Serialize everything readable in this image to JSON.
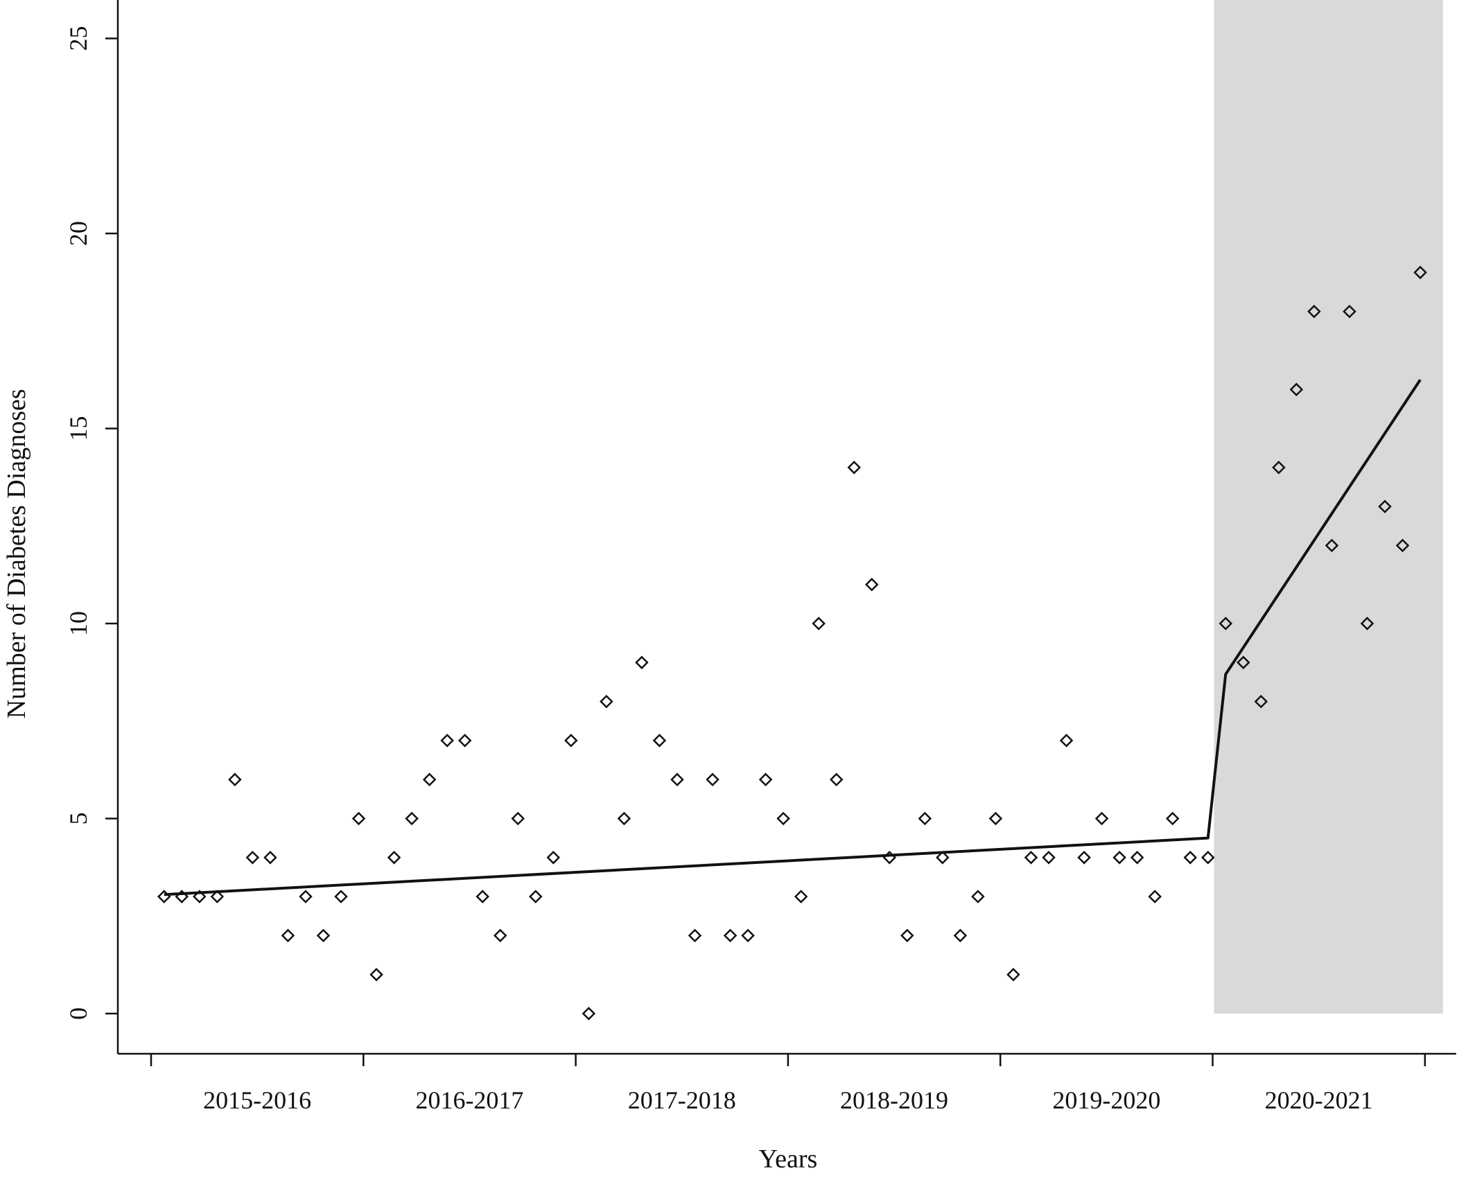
{
  "chart_data": {
    "type": "scatter",
    "title": "",
    "xlabel": "Years",
    "ylabel": "Number of Diabetes Diagnoses",
    "ylim": [
      0,
      25
    ],
    "yticks": [
      0,
      5,
      10,
      15,
      20,
      25
    ],
    "categories": [
      "2015-2016",
      "2016-2017",
      "2017-2018",
      "2018-2019",
      "2019-2020",
      "2020-2021"
    ],
    "months_per_category": 12,
    "grid": false,
    "legend": "none",
    "shaded_region": {
      "category": "2020-2021",
      "ymin": 0,
      "ymax": 25,
      "color": "#d9d9d9"
    },
    "series": [
      {
        "type": "scatter",
        "marker": "diamond-open",
        "color": "#111111",
        "values": [
          3,
          3,
          3,
          3,
          6,
          4,
          4,
          2,
          3,
          2,
          3,
          5,
          1,
          4,
          5,
          6,
          7,
          7,
          3,
          2,
          5,
          3,
          4,
          7,
          0,
          8,
          5,
          9,
          7,
          6,
          2,
          6,
          2,
          2,
          6,
          5,
          3,
          10,
          6,
          14,
          11,
          4,
          2,
          5,
          4,
          2,
          3,
          5,
          1,
          4,
          4,
          7,
          4,
          5,
          4,
          4,
          3,
          5,
          4,
          4,
          10,
          9,
          8,
          14,
          16,
          18,
          12,
          18,
          10,
          13,
          12,
          19
        ]
      },
      {
        "type": "line",
        "color": "#111111",
        "segments": [
          {
            "from_month": 1,
            "to_month": 60,
            "y_start": 3.05,
            "y_end": 4.5
          },
          {
            "from_month": 61,
            "to_month": 72,
            "y_start": 8.7,
            "y_end": 16.25
          }
        ],
        "jump": {
          "from_month": 60,
          "to_month": 61
        }
      }
    ]
  }
}
